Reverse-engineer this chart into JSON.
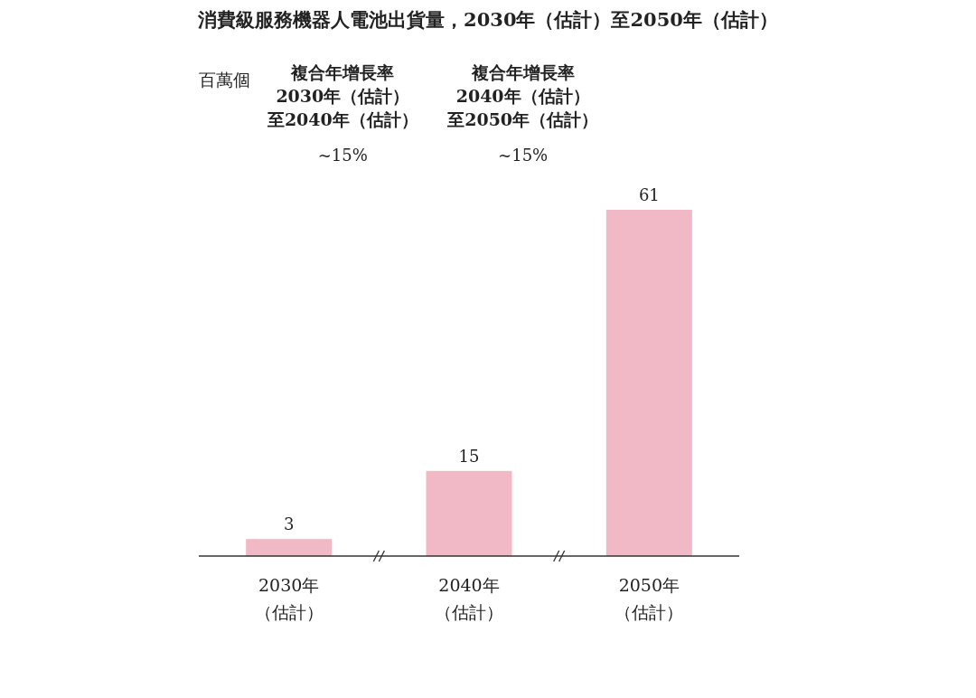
{
  "chart_data": {
    "type": "bar",
    "title": "消費級服務機器人電池出貨量，2030年（估計）至2050年（估計）",
    "categories": [
      "2030年（估計）",
      "2040年（估計）",
      "2050年（估計）"
    ],
    "values": [
      3,
      15,
      61
    ],
    "color": "#f0b9c5",
    "data_labels": true,
    "annotations": [
      "百萬個",
      "複合年增長率",
      "2030年（估計）",
      "至2040年（估計）",
      "~15%",
      "複合年增長率",
      "2040年（估計）",
      "至2050年（估計）",
      "~15%"
    ]
  }
}
